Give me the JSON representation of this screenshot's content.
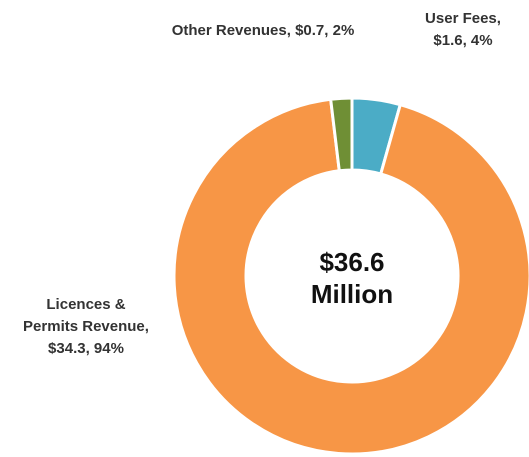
{
  "chart_data": {
    "type": "donut",
    "labels": [
      "User Fees, $1.6, 4%",
      "Licences & Permits Revenue, $34.3, 94%",
      "Other Revenues, $0.7, 2%"
    ],
    "values": [
      1.6,
      34.3,
      0.7
    ],
    "colors": [
      "#4bacc6",
      "#f79646",
      "#6f8f35"
    ],
    "center_label": "$36.6 Million"
  }
}
